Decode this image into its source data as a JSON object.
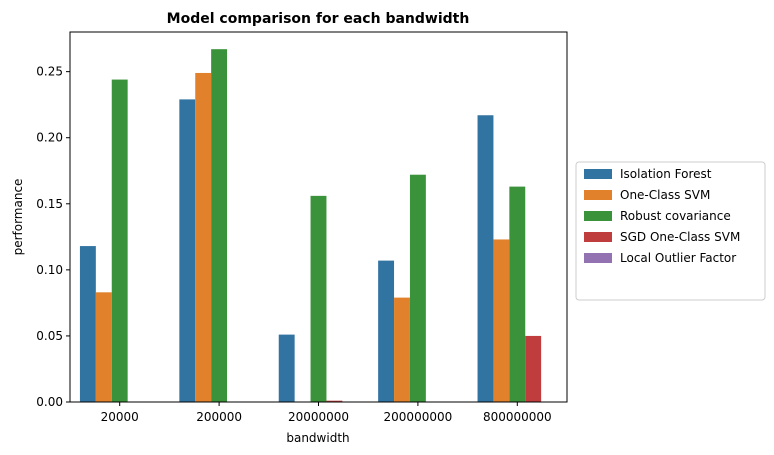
{
  "chart_data": {
    "type": "bar",
    "title": "Model comparison for each bandwidth",
    "xlabel": "bandwidth",
    "ylabel": "performance",
    "categories": [
      "20000",
      "200000",
      "20000000",
      "200000000",
      "800000000"
    ],
    "ylim": [
      0,
      0.28
    ],
    "yticks": [
      "0.00",
      "0.05",
      "0.10",
      "0.15",
      "0.20",
      "0.25"
    ],
    "grid": false,
    "legend_position": "right",
    "series": [
      {
        "name": "Isolation Forest",
        "color": "#3274a1",
        "values": [
          0.118,
          0.229,
          0.051,
          0.107,
          0.217
        ]
      },
      {
        "name": "One-Class SVM",
        "color": "#e1812c",
        "values": [
          0.083,
          0.249,
          0.0,
          0.079,
          0.123
        ]
      },
      {
        "name": "Robust covariance",
        "color": "#3a923a",
        "values": [
          0.244,
          0.267,
          0.156,
          0.172,
          0.163
        ]
      },
      {
        "name": "SGD One-Class SVM",
        "color": "#c03d3e",
        "values": [
          0.0,
          0.0,
          0.001,
          0.0,
          0.05
        ]
      },
      {
        "name": "Local Outlier Factor",
        "color": "#9372b2",
        "values": [
          0.0,
          0.0,
          0.0,
          0.0,
          0.0
        ]
      }
    ]
  }
}
